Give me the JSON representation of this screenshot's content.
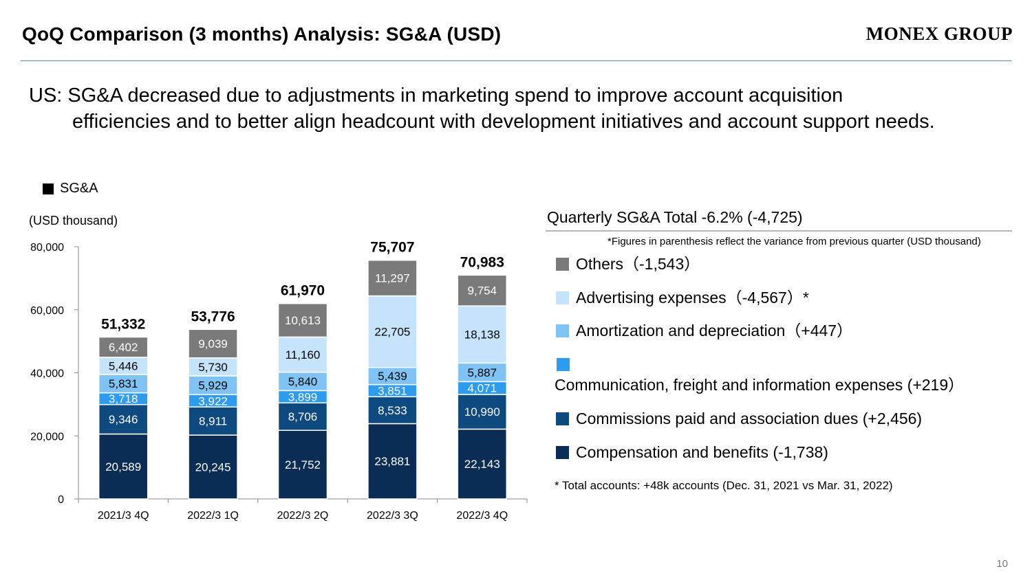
{
  "header": {
    "title": "QoQ Comparison (3 months) Analysis: SG&A (USD)",
    "logo": "MONEX GROUP"
  },
  "headline": {
    "line1": "US: SG&A decreased due to adjustments in marketing spend to improve account acquisition",
    "line2": "efficiencies and to better align headcount with development initiatives and account support needs."
  },
  "chart_legend": "SG&A",
  "unit_label": "(USD thousand)",
  "colors": {
    "compensation": "#0b2d55",
    "commissions": "#0e4a80",
    "communication": "#2e9cee",
    "amortization": "#7fc3f5",
    "advertising": "#c5e4fb",
    "others": "#7a7a7a"
  },
  "chart_data": {
    "type": "bar",
    "stacked": true,
    "categories": [
      "2021/3 4Q",
      "2022/3 1Q",
      "2022/3 2Q",
      "2022/3 3Q",
      "2022/3 4Q"
    ],
    "series": [
      {
        "name": "Compensation and benefits",
        "key": "compensation",
        "values": [
          20589,
          20245,
          21752,
          23881,
          22143
        ],
        "labels": [
          "20,589",
          "20,245",
          "21,752",
          "23,881",
          "22,143"
        ]
      },
      {
        "name": "Commissions paid and association dues",
        "key": "commissions",
        "values": [
          9346,
          8911,
          8706,
          8533,
          10990
        ],
        "labels": [
          "9,346",
          "8,911",
          "8,706",
          "8,533",
          "10,990"
        ]
      },
      {
        "name": "Communication, freight and information expenses",
        "key": "communication",
        "values": [
          3718,
          3922,
          3899,
          3851,
          4071
        ],
        "labels": [
          "3,718",
          "3,922",
          "3,899",
          "3,851",
          "4,071"
        ]
      },
      {
        "name": "Amortization and depreciation",
        "key": "amortization",
        "values": [
          5831,
          5929,
          5840,
          5439,
          5887
        ],
        "labels": [
          "5,831",
          "5,929",
          "5,840",
          "5,439",
          "5,887"
        ]
      },
      {
        "name": "Advertising expenses",
        "key": "advertising",
        "values": [
          5446,
          5730,
          11160,
          22705,
          18138
        ],
        "labels": [
          "5,446",
          "5,730",
          "11,160",
          "22,705",
          "18,138"
        ]
      },
      {
        "name": "Others",
        "key": "others",
        "values": [
          6402,
          9039,
          10613,
          11297,
          9754
        ],
        "labels": [
          "6,402",
          "9,039",
          "10,613",
          "11,297",
          "9,754"
        ]
      }
    ],
    "totals": [
      51332,
      53776,
      61970,
      75707,
      70983
    ],
    "total_labels": [
      "51,332",
      "53,776",
      "61,970",
      "75,707",
      "70,983"
    ],
    "ylim": [
      0,
      80000
    ],
    "yticks": [
      0,
      20000,
      40000,
      60000,
      80000
    ],
    "ytick_labels": [
      "0",
      "20,000",
      "40,000",
      "60,000",
      "80,000"
    ],
    "ylabel": "(USD thousand)",
    "xlabel": ""
  },
  "panel": {
    "title": "Quarterly SG&A Total -6.2% (-4,725)",
    "note": "*Figures in parenthesis reflect the variance from previous quarter (USD thousand)",
    "items": [
      {
        "text": "Others（-1,543）",
        "color_key": "others"
      },
      {
        "text": "Advertising expenses（-4,567）*",
        "color_key": "advertising"
      },
      {
        "text": "Amortization and depreciation（+447）",
        "color_key": "amortization"
      },
      {
        "text": "Communication, freight and information expenses (+219）",
        "color_key": "communication"
      },
      {
        "text": "Commissions paid and association dues (+2,456)",
        "color_key": "commissions"
      },
      {
        "text": "Compensation and benefits (-1,738)",
        "color_key": "compensation"
      }
    ],
    "footnote": "* Total accounts: +48k accounts (Dec. 31, 2021 vs Mar. 31, 2022)"
  },
  "page_number": "10"
}
